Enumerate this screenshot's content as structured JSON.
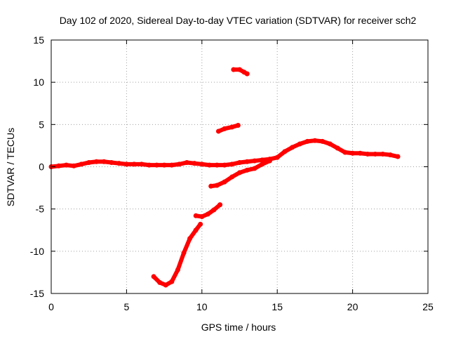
{
  "chart_data": {
    "type": "scatter",
    "title": "Day 102 of 2020, Sidereal Day-to-day VTEC variation (SDTVAR) for receiver sch2",
    "xlabel": "GPS time / hours",
    "ylabel": "SDTVAR / TECUs",
    "xlim": [
      0,
      25
    ],
    "ylim": [
      -15,
      15
    ],
    "xticks": [
      0,
      5,
      10,
      15,
      20,
      25
    ],
    "yticks": [
      -15,
      -10,
      -5,
      0,
      5,
      10,
      15
    ],
    "grid": true,
    "series_color": "#ff0000",
    "series": [
      {
        "name": "main band",
        "x": [
          0,
          0.5,
          1,
          1.5,
          2,
          2.5,
          3,
          3.5,
          4,
          4.5,
          5,
          5.5,
          6,
          6.5,
          7,
          7.5,
          8,
          8.5,
          9,
          9.5,
          10,
          10.5,
          11,
          11.5,
          12,
          12.5,
          13,
          13.5,
          14,
          14.5,
          15,
          15.5,
          16,
          16.5,
          17,
          17.5,
          18,
          18.5,
          19,
          19.5,
          20,
          20.5,
          21,
          21.5,
          22,
          22.5,
          23
        ],
        "y": [
          0,
          0.1,
          0.2,
          0.1,
          0.3,
          0.5,
          0.6,
          0.6,
          0.5,
          0.4,
          0.3,
          0.3,
          0.3,
          0.2,
          0.2,
          0.2,
          0.2,
          0.3,
          0.5,
          0.4,
          0.3,
          0.2,
          0.2,
          0.2,
          0.3,
          0.5,
          0.6,
          0.7,
          0.8,
          0.9,
          1.1,
          1.8,
          2.3,
          2.7,
          3.0,
          3.1,
          3.0,
          2.7,
          2.2,
          1.7,
          1.6,
          1.6,
          1.5,
          1.5,
          1.5,
          1.4,
          1.2
        ]
      },
      {
        "name": "lower arc",
        "x": [
          6.8,
          7.2,
          7.6,
          8.0,
          8.4,
          8.8,
          9.2,
          9.6,
          9.9
        ],
        "y": [
          -13.0,
          -13.7,
          -14.0,
          -13.6,
          -12.2,
          -10.2,
          -8.5,
          -7.5,
          -6.8
        ]
      },
      {
        "name": "segment 1",
        "x": [
          9.6,
          10.0,
          10.4,
          10.8,
          11.2
        ],
        "y": [
          -5.8,
          -5.9,
          -5.6,
          -5.1,
          -4.5
        ]
      },
      {
        "name": "segment 2",
        "x": [
          10.6,
          11.0,
          11.5,
          12.0,
          12.5,
          13.0,
          13.5,
          14.0,
          14.5
        ],
        "y": [
          -2.3,
          -2.2,
          -1.8,
          -1.2,
          -0.7,
          -0.4,
          -0.2,
          0.3,
          0.7
        ]
      },
      {
        "name": "segment 3",
        "x": [
          11.1,
          11.5,
          12.0,
          12.4
        ],
        "y": [
          4.2,
          4.5,
          4.7,
          4.9
        ]
      },
      {
        "name": "segment 4",
        "x": [
          12.1,
          12.5,
          12.8,
          13.0
        ],
        "y": [
          11.5,
          11.5,
          11.2,
          11.0
        ]
      }
    ]
  }
}
